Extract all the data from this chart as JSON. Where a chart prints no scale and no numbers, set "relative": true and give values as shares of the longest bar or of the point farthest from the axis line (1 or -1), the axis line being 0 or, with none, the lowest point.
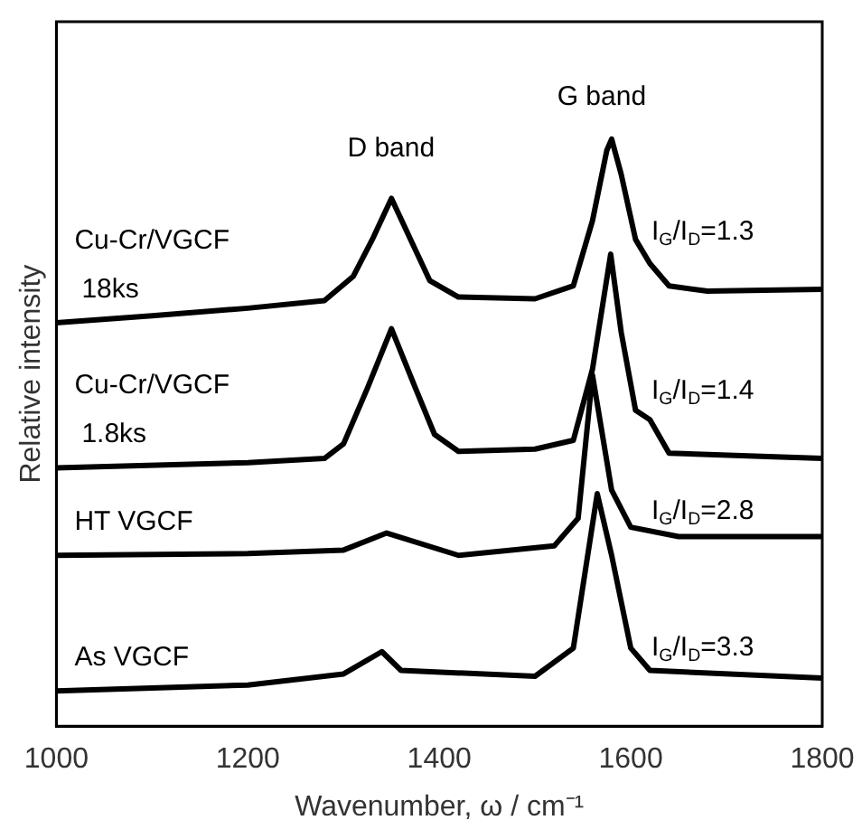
{
  "chart_data": {
    "type": "line",
    "relative": true,
    "xlabel": "Wavenumber, ω / cm⁻¹",
    "ylabel": "Relative intensity",
    "xlim": [
      1000,
      1800
    ],
    "xticks": [
      1000,
      1200,
      1400,
      1600,
      1800
    ],
    "grid": false,
    "legend": false,
    "marker": "none",
    "line_style": "solid",
    "series": [
      {
        "name": "Cu-Cr/VGCF\n18ks",
        "color": "#000000",
        "x": [
          1000,
          1100,
          1200,
          1280,
          1310,
          1330,
          1350,
          1370,
          1390,
          1420,
          1500,
          1540,
          1560,
          1575,
          1580,
          1590,
          1605,
          1620,
          1640,
          1680,
          1800
        ],
        "values": [
          0.687,
          0.699,
          0.712,
          0.725,
          0.766,
          0.829,
          0.899,
          0.829,
          0.759,
          0.731,
          0.728,
          0.75,
          0.861,
          0.981,
          1.0,
          0.94,
          0.829,
          0.788,
          0.75,
          0.741,
          0.744
        ]
      },
      {
        "name": "Cu-Cr/VGCF\n1.8ks",
        "color": "#000000",
        "x": [
          1000,
          1200,
          1280,
          1300,
          1325,
          1350,
          1375,
          1395,
          1420,
          1500,
          1540,
          1560,
          1579,
          1590,
          1605,
          1620,
          1640,
          1800
        ],
        "values": [
          0.44,
          0.449,
          0.456,
          0.481,
          0.576,
          0.677,
          0.576,
          0.497,
          0.468,
          0.472,
          0.487,
          0.608,
          0.804,
          0.671,
          0.538,
          0.522,
          0.465,
          0.456
        ]
      },
      {
        "name": "HT VGCF",
        "color": "#000000",
        "x": [
          1000,
          1200,
          1300,
          1345,
          1420,
          1520,
          1545,
          1560,
          1580,
          1600,
          1650,
          1800
        ],
        "values": [
          0.291,
          0.294,
          0.3,
          0.329,
          0.291,
          0.307,
          0.354,
          0.598,
          0.402,
          0.339,
          0.323,
          0.323
        ]
      },
      {
        "name": "As VGCF",
        "color": "#000000",
        "x": [
          1000,
          1200,
          1300,
          1340,
          1360,
          1500,
          1540,
          1555,
          1565,
          1580,
          1600,
          1620,
          1800
        ],
        "values": [
          0.06,
          0.07,
          0.089,
          0.127,
          0.095,
          0.085,
          0.133,
          0.291,
          0.396,
          0.291,
          0.133,
          0.095,
          0.082
        ]
      }
    ],
    "annotations": [
      "D band",
      "G band",
      "I$_{G}$/I$_{D}$=1.3",
      "I$_{G}$/I$_{D}$=1.4",
      "I$_{G}$/I$_{D}$=2.8",
      "I$_{G}$/I$_{D}$=3.3"
    ]
  }
}
